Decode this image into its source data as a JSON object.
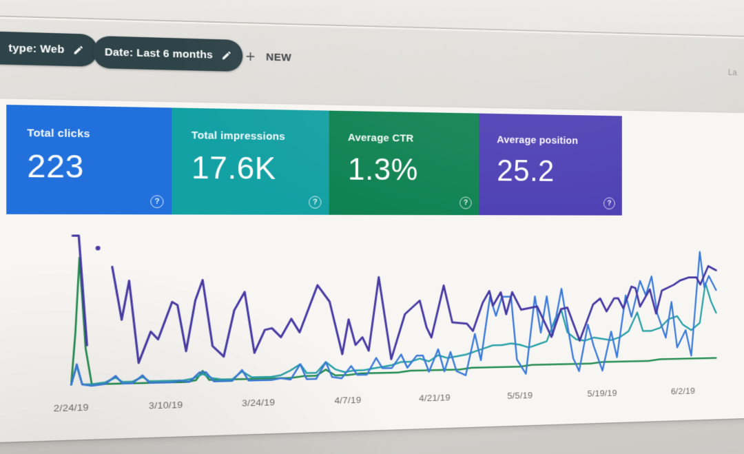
{
  "filters": {
    "chips": [
      {
        "label": "type: Web"
      },
      {
        "label": "Date: Last 6 months"
      }
    ],
    "new_button": {
      "plus": "+",
      "label": "NEW"
    }
  },
  "top_right_partial_text": "La",
  "metric_cards": [
    {
      "label": "Total clicks",
      "value": "223",
      "color": "#2170db",
      "help_icon": "?"
    },
    {
      "label": "Total impressions",
      "value": "17.6K",
      "color": "#14a1a4",
      "help_icon": "?"
    },
    {
      "label": "Average CTR",
      "value": "1.3%",
      "color": "#0e8251",
      "help_icon": "?"
    },
    {
      "label": "Average position",
      "value": "25.2",
      "color": "#4c3eb3",
      "help_icon": "?"
    }
  ],
  "chart_data": {
    "type": "line",
    "title": "",
    "xlabel": "",
    "ylabel": "",
    "grid": false,
    "legend": false,
    "x_axis": {
      "tick_labels": [
        "2/24/19",
        "3/10/19",
        "3/24/19",
        "4/7/19",
        "4/21/19",
        "5/5/19",
        "5/19/19",
        "6/2/19"
      ],
      "tick_day_index": [
        0,
        14,
        28,
        42,
        56,
        70,
        84,
        98
      ],
      "range_days": [
        0,
        104
      ]
    },
    "y_axis": {
      "visible": false,
      "units": "relative height, 0-100 % of plot (no y scale shown in UI)"
    },
    "series": [
      {
        "name": "position",
        "color": "#1f8a4d",
        "points": [
          [
            0,
            2
          ],
          [
            0.6,
            35
          ],
          [
            1.2,
            83
          ],
          [
            2.1,
            25
          ],
          [
            3,
            2
          ],
          [
            5,
            2
          ],
          [
            7,
            2
          ],
          [
            9,
            2
          ],
          [
            11,
            2
          ],
          [
            13,
            2
          ],
          [
            15,
            2
          ],
          [
            17,
            2
          ],
          [
            18.5,
            3
          ],
          [
            19.5,
            9
          ],
          [
            20.5,
            3
          ],
          [
            23,
            3
          ],
          [
            25,
            3
          ],
          [
            27,
            3
          ],
          [
            29,
            3
          ],
          [
            31,
            3
          ],
          [
            33,
            3
          ],
          [
            35,
            4
          ],
          [
            37,
            4
          ],
          [
            38.5,
            8
          ],
          [
            40,
            4
          ],
          [
            42,
            4
          ],
          [
            44,
            5
          ],
          [
            46,
            5
          ],
          [
            48,
            5
          ],
          [
            50,
            5
          ],
          [
            52,
            6
          ],
          [
            54,
            6
          ],
          [
            56,
            6
          ],
          [
            58,
            6
          ],
          [
            60,
            6
          ],
          [
            62,
            7
          ],
          [
            64,
            7
          ],
          [
            66,
            7
          ],
          [
            68,
            7
          ],
          [
            70,
            7
          ],
          [
            72,
            8
          ],
          [
            74,
            8
          ],
          [
            76,
            8
          ],
          [
            78,
            8
          ],
          [
            80,
            8
          ],
          [
            82,
            8
          ],
          [
            84,
            9
          ],
          [
            86,
            9
          ],
          [
            88,
            9
          ],
          [
            90,
            9
          ],
          [
            92,
            9
          ],
          [
            94,
            10
          ],
          [
            96,
            10
          ],
          [
            98,
            10
          ],
          [
            100,
            10
          ],
          [
            102,
            10
          ],
          [
            103.9,
            10
          ]
        ]
      },
      {
        "name": "ctr",
        "color": "#27a0a5",
        "points": [
          [
            0,
            2
          ],
          [
            0.8,
            14
          ],
          [
            1.6,
            2
          ],
          [
            3,
            2
          ],
          [
            5,
            3
          ],
          [
            6.5,
            6
          ],
          [
            7.5,
            3
          ],
          [
            9,
            3
          ],
          [
            10.5,
            6
          ],
          [
            11.5,
            3
          ],
          [
            13,
            3
          ],
          [
            15,
            3
          ],
          [
            16.5,
            3
          ],
          [
            18,
            4
          ],
          [
            19.5,
            7
          ],
          [
            21,
            4
          ],
          [
            22.5,
            3
          ],
          [
            24,
            3
          ],
          [
            25.5,
            8
          ],
          [
            27,
            4
          ],
          [
            28.5,
            4
          ],
          [
            30,
            4
          ],
          [
            31.5,
            5
          ],
          [
            33,
            8
          ],
          [
            34.5,
            12
          ],
          [
            35.5,
            6
          ],
          [
            37,
            6
          ],
          [
            38.5,
            13
          ],
          [
            40,
            8
          ],
          [
            41.5,
            6
          ],
          [
            43,
            7
          ],
          [
            44.5,
            7
          ],
          [
            46,
            8
          ],
          [
            47.5,
            9
          ],
          [
            49,
            10
          ],
          [
            50.5,
            12
          ],
          [
            52,
            12
          ],
          [
            53.5,
            14
          ],
          [
            55,
            12
          ],
          [
            56.5,
            16
          ],
          [
            58,
            14
          ],
          [
            59.5,
            15
          ],
          [
            61,
            16
          ],
          [
            62.5,
            18
          ],
          [
            64,
            20
          ],
          [
            65.5,
            22
          ],
          [
            67,
            22
          ],
          [
            68.5,
            23
          ],
          [
            70,
            22
          ],
          [
            71.5,
            20
          ],
          [
            73,
            22
          ],
          [
            74.5,
            24
          ],
          [
            76,
            40
          ],
          [
            77,
            45
          ],
          [
            78,
            30
          ],
          [
            79.5,
            25
          ],
          [
            81,
            24
          ],
          [
            82.5,
            26
          ],
          [
            84,
            25
          ],
          [
            85.5,
            24
          ],
          [
            87,
            26
          ],
          [
            88.5,
            30
          ],
          [
            90,
            43
          ],
          [
            91,
            30
          ],
          [
            92.5,
            30
          ],
          [
            94,
            32
          ],
          [
            95.5,
            38
          ],
          [
            97,
            40
          ],
          [
            98,
            34
          ],
          [
            99.5,
            30
          ],
          [
            101,
            35
          ],
          [
            102,
            63
          ],
          [
            103,
            50
          ],
          [
            103.9,
            42
          ]
        ]
      },
      {
        "name": "clicks",
        "color": "#3a7ad8",
        "points": [
          [
            0,
            2
          ],
          [
            0.8,
            15
          ],
          [
            1.6,
            2
          ],
          [
            3,
            1
          ],
          [
            5,
            2
          ],
          [
            6.5,
            7
          ],
          [
            7.5,
            2
          ],
          [
            9,
            2
          ],
          [
            10.5,
            7
          ],
          [
            11.5,
            2
          ],
          [
            13,
            2
          ],
          [
            15,
            2
          ],
          [
            16,
            3
          ],
          [
            17.5,
            2
          ],
          [
            19,
            8
          ],
          [
            20,
            8
          ],
          [
            21.2,
            2
          ],
          [
            22.5,
            2
          ],
          [
            24,
            2
          ],
          [
            25.5,
            9
          ],
          [
            26.5,
            2
          ],
          [
            28,
            2
          ],
          [
            30,
            2
          ],
          [
            31.5,
            3
          ],
          [
            33,
            2
          ],
          [
            34.5,
            12
          ],
          [
            35.5,
            2
          ],
          [
            37,
            2
          ],
          [
            38.5,
            13
          ],
          [
            39.5,
            3
          ],
          [
            41,
            2
          ],
          [
            42.5,
            10
          ],
          [
            43.5,
            4
          ],
          [
            45,
            4
          ],
          [
            46.5,
            15
          ],
          [
            47.5,
            8
          ],
          [
            49,
            8
          ],
          [
            50.5,
            17
          ],
          [
            51.5,
            8
          ],
          [
            53,
            16
          ],
          [
            54,
            16
          ],
          [
            55,
            5
          ],
          [
            56.5,
            20
          ],
          [
            57.5,
            5
          ],
          [
            58.5,
            18
          ],
          [
            59.5,
            5
          ],
          [
            61,
            2
          ],
          [
            62.5,
            30
          ],
          [
            63.5,
            12
          ],
          [
            65,
            55
          ],
          [
            66,
            42
          ],
          [
            67,
            55
          ],
          [
            68.5,
            55
          ],
          [
            69.5,
            12
          ],
          [
            71,
            2
          ],
          [
            72.5,
            55
          ],
          [
            73.5,
            30
          ],
          [
            74.5,
            55
          ],
          [
            75.5,
            28
          ],
          [
            77,
            60
          ],
          [
            78,
            35
          ],
          [
            79,
            12
          ],
          [
            80,
            3
          ],
          [
            81.5,
            35
          ],
          [
            82.5,
            20
          ],
          [
            84,
            3
          ],
          [
            85.5,
            30
          ],
          [
            86.5,
            12
          ],
          [
            88,
            55
          ],
          [
            89,
            40
          ],
          [
            90.5,
            65
          ],
          [
            91.5,
            55
          ],
          [
            92.5,
            68
          ],
          [
            93.5,
            42
          ],
          [
            95,
            25
          ],
          [
            96,
            50
          ],
          [
            97,
            18
          ],
          [
            98.5,
            30
          ],
          [
            99.5,
            12
          ],
          [
            101,
            85
          ],
          [
            101.8,
            60
          ],
          [
            102.6,
            68
          ],
          [
            103.9,
            58
          ]
        ]
      },
      {
        "name": "impressions",
        "color": "#473aa3",
        "segments": [
          [
            [
              0.2,
              97
            ],
            [
              1.1,
              97
            ],
            [
              2.3,
              27
            ]
          ],
          [
            [
              6,
              77
            ],
            [
              7.4,
              43
            ],
            [
              8.5,
              68
            ],
            [
              9.9,
              15
            ],
            [
              11.7,
              35
            ],
            [
              12.8,
              30
            ],
            [
              14.9,
              54
            ],
            [
              15.7,
              52
            ],
            [
              17,
              22
            ],
            [
              18.4,
              55
            ],
            [
              19.5,
              68
            ],
            [
              21,
              25
            ],
            [
              22.7,
              18
            ],
            [
              24.3,
              48
            ],
            [
              25.9,
              60
            ],
            [
              27.4,
              20
            ],
            [
              29,
              35
            ],
            [
              30.1,
              36
            ],
            [
              31.5,
              30
            ],
            [
              33.1,
              42
            ],
            [
              34.4,
              33
            ],
            [
              37.2,
              64
            ],
            [
              39.1,
              53
            ],
            [
              41.1,
              18
            ],
            [
              42.1,
              41
            ],
            [
              43.2,
              24
            ],
            [
              44.3,
              29
            ],
            [
              45.3,
              20
            ],
            [
              46.9,
              69
            ],
            [
              48.9,
              14
            ],
            [
              51.1,
              44
            ],
            [
              53.5,
              53
            ],
            [
              54.6,
              35
            ],
            [
              55.4,
              28
            ],
            [
              57.4,
              63
            ],
            [
              58.8,
              38
            ],
            [
              61.2,
              37
            ],
            [
              62.2,
              32
            ],
            [
              63.8,
              51
            ],
            [
              64.9,
              59
            ],
            [
              65.5,
              49
            ],
            [
              66.8,
              58
            ],
            [
              67.7,
              43
            ],
            [
              68.7,
              58
            ],
            [
              70.2,
              46
            ],
            [
              72.9,
              48
            ],
            [
              75.3,
              27
            ],
            [
              76.9,
              46
            ],
            [
              78,
              47
            ],
            [
              80.1,
              24
            ],
            [
              82.4,
              49
            ],
            [
              83.6,
              53
            ],
            [
              84.7,
              44
            ],
            [
              86,
              53
            ],
            [
              86.7,
              53
            ],
            [
              87.6,
              46
            ],
            [
              89,
              61
            ],
            [
              89.7,
              60
            ],
            [
              90.5,
              47
            ],
            [
              92.2,
              59
            ],
            [
              93.3,
              42
            ],
            [
              94.3,
              58
            ],
            [
              96.4,
              62
            ],
            [
              97.5,
              65
            ],
            [
              99,
              67
            ],
            [
              100.4,
              67
            ],
            [
              101.1,
              62
            ],
            [
              102.5,
              75
            ],
            [
              103.9,
              72
            ]
          ]
        ],
        "isolated_point": [
          3.9,
          89
        ]
      }
    ]
  }
}
